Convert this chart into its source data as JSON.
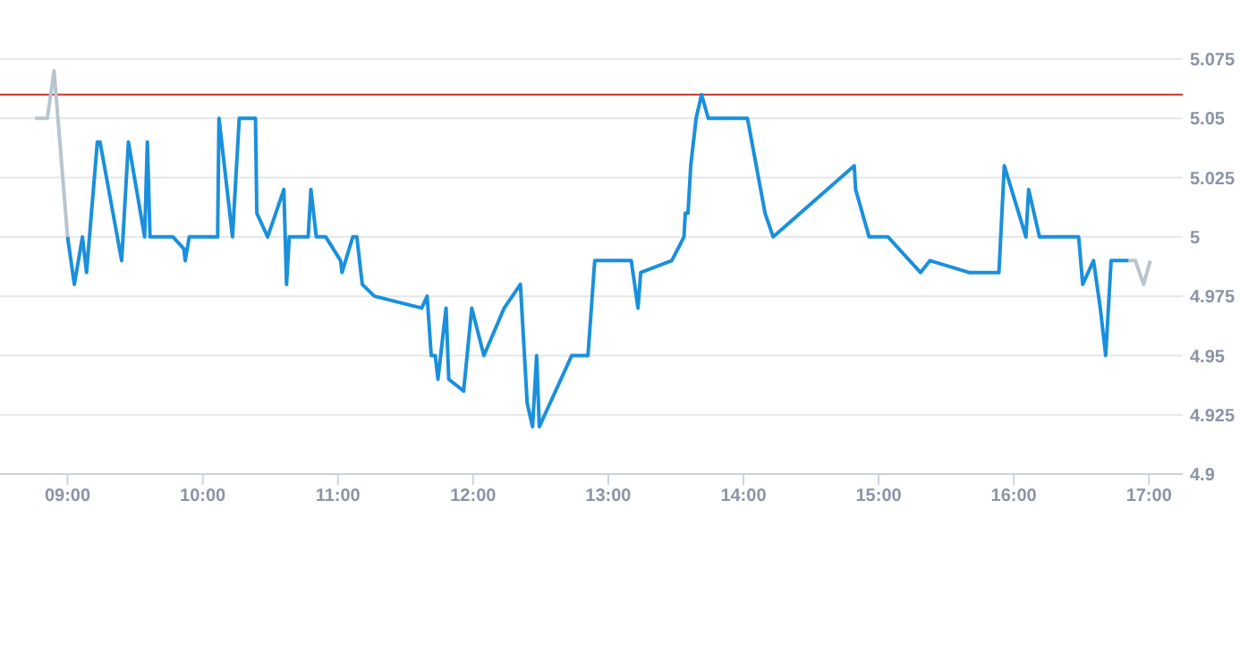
{
  "chart_data": {
    "type": "line",
    "xlim": [
      8.5,
      17.25
    ],
    "xticks": [
      {
        "value": 9,
        "label": "09:00"
      },
      {
        "value": 10,
        "label": "10:00"
      },
      {
        "value": 11,
        "label": "11:00"
      },
      {
        "value": 12,
        "label": "12:00"
      },
      {
        "value": 13,
        "label": "13:00"
      },
      {
        "value": 14,
        "label": "14:00"
      },
      {
        "value": 15,
        "label": "15:00"
      },
      {
        "value": 16,
        "label": "16:00"
      },
      {
        "value": 17,
        "label": "17:00"
      }
    ],
    "ylim": [
      4.9,
      5.075
    ],
    "yticks": [
      4.9,
      4.925,
      4.95,
      4.975,
      5,
      5.025,
      5.05,
      5.075
    ],
    "grid": "y",
    "marker": "none",
    "line_style": "solid",
    "ref_lines": [
      {
        "axis": "y",
        "value": 5.06,
        "color": "#c9302c"
      }
    ],
    "series": [
      {
        "color": "#b8c5cf",
        "x": [
          8.76,
          8.85,
          8.9,
          9.0
        ],
        "values": [
          5.05,
          5.05,
          5.07,
          5.0
        ]
      },
      {
        "color": "#1a90dc",
        "x": [
          9.0,
          9.05,
          9.11,
          9.14,
          9.22,
          9.24,
          9.4,
          9.45,
          9.57,
          9.59,
          9.61,
          9.78,
          9.86,
          9.87,
          9.9,
          10.11,
          10.12,
          10.22,
          10.27,
          10.39,
          10.4,
          10.48,
          10.6,
          10.62,
          10.64,
          10.78,
          10.8,
          10.84,
          10.91,
          11.02,
          11.03,
          11.11,
          11.14,
          11.18,
          11.27,
          11.62,
          11.66,
          11.69,
          11.72,
          11.74,
          11.8,
          11.82,
          11.93,
          11.99,
          12.08,
          12.23,
          12.35,
          12.4,
          12.44,
          12.47,
          12.49,
          12.73,
          12.85,
          12.9,
          13.17,
          13.22,
          13.24,
          13.47,
          13.56,
          13.57,
          13.59,
          13.61,
          13.65,
          13.69,
          13.74,
          14.03,
          14.16,
          14.22,
          14.82,
          14.83,
          14.93,
          15.07,
          15.31,
          15.38,
          15.67,
          15.89,
          15.93,
          16.09,
          16.11,
          16.19,
          16.48,
          16.51,
          16.59,
          16.64,
          16.68,
          16.72,
          16.85
        ],
        "values": [
          5.0,
          4.98,
          5.0,
          4.985,
          5.04,
          5.04,
          4.99,
          5.04,
          5.0,
          5.04,
          5.0,
          5.0,
          4.995,
          4.99,
          5.0,
          5.0,
          5.05,
          5.0,
          5.05,
          5.05,
          5.01,
          5.0,
          5.02,
          4.98,
          5.0,
          5.0,
          5.02,
          5.0,
          5.0,
          4.99,
          4.985,
          5.0,
          5.0,
          4.98,
          4.975,
          4.97,
          4.975,
          4.95,
          4.95,
          4.94,
          4.97,
          4.94,
          4.935,
          4.97,
          4.95,
          4.97,
          4.98,
          4.93,
          4.92,
          4.95,
          4.92,
          4.95,
          4.95,
          4.99,
          4.99,
          4.97,
          4.985,
          4.99,
          5.0,
          5.01,
          5.01,
          5.03,
          5.05,
          5.06,
          5.05,
          5.05,
          5.01,
          5.0,
          5.03,
          5.02,
          5.0,
          5.0,
          4.985,
          4.99,
          4.985,
          4.985,
          5.03,
          5.0,
          5.02,
          5.0,
          5.0,
          4.98,
          4.99,
          4.97,
          4.95,
          4.99,
          4.99
        ]
      },
      {
        "color": "#b8c5cf",
        "x": [
          16.85,
          16.9,
          16.96,
          17.01
        ],
        "values": [
          4.99,
          4.99,
          4.98,
          4.99
        ]
      }
    ]
  }
}
